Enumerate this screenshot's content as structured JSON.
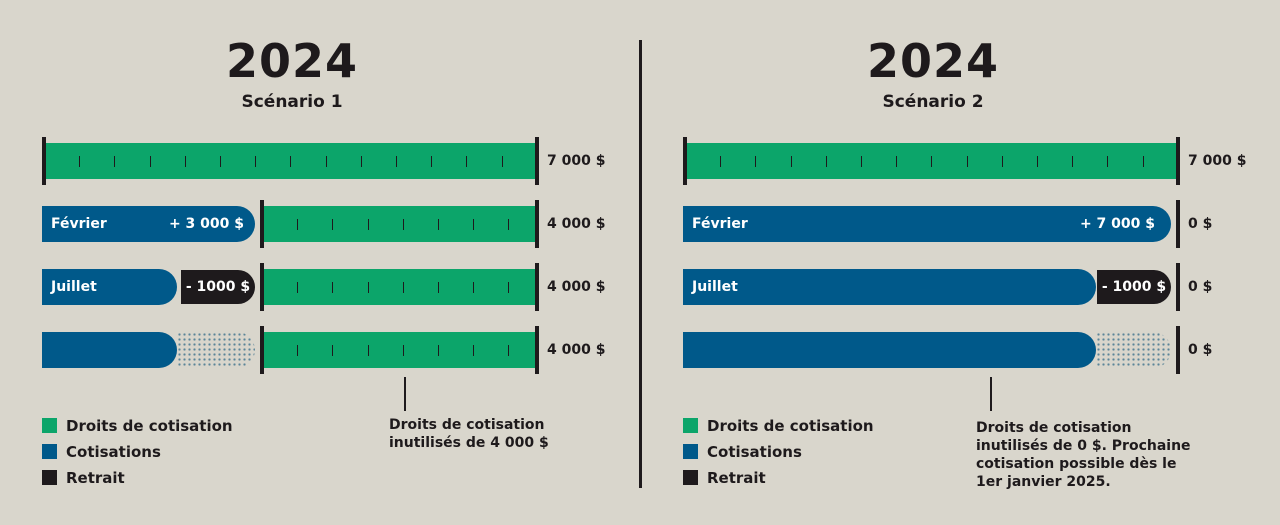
{
  "colors": {
    "background": "#d9d6cc",
    "droits": "#0ca56a",
    "cotisations": "#00598a",
    "retrait": "#1e1a1c"
  },
  "scenario1": {
    "year": "2024",
    "title": "Scénario 1",
    "rows": [
      {
        "value": "7 000 $"
      },
      {
        "label": "Février",
        "amount": "+ 3 000 $",
        "value": "4 000 $"
      },
      {
        "label": "Juillet",
        "amount": "- 1000 $",
        "value": "4 000 $"
      },
      {
        "value": "4 000 $"
      }
    ],
    "note": [
      "Droits de cotisation",
      "inutilisés de 4 000 $"
    ]
  },
  "scenario2": {
    "year": "2024",
    "title": "Scénario 2",
    "rows": [
      {
        "value": "7 000 $"
      },
      {
        "label": "Février",
        "amount": "+ 7 000 $",
        "value": "0 $"
      },
      {
        "label": "Juillet",
        "amount": "- 1000 $",
        "value": "0 $"
      },
      {
        "value": "0 $"
      }
    ],
    "note": [
      "Droits de cotisation",
      "inutilisés de 0 $. Prochaine",
      "cotisation possible dès le",
      "1er janvier 2025."
    ]
  },
  "legend": [
    {
      "label": "Droits de cotisation",
      "color": "#0ca56a"
    },
    {
      "label": "Cotisations",
      "color": "#00598a"
    },
    {
      "label": "Retrait",
      "color": "#1e1a1c"
    }
  ]
}
